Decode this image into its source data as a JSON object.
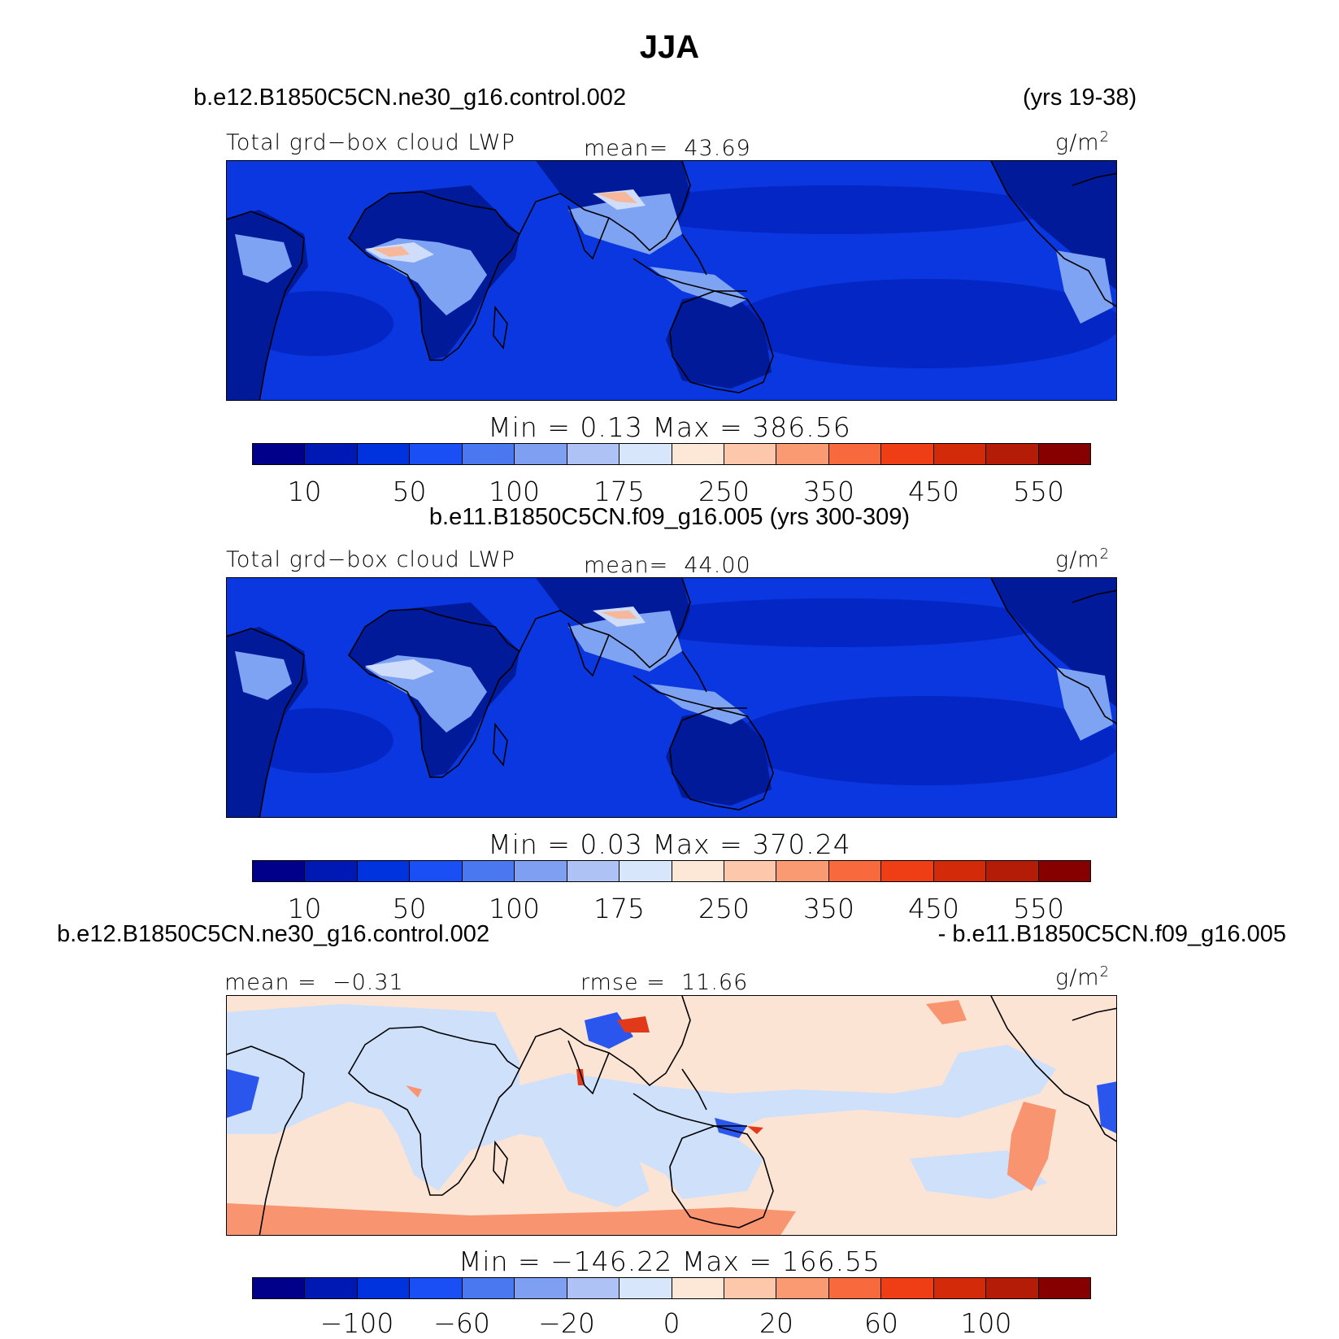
{
  "title": "JJA",
  "panel1": {
    "case": "b.e12.B1850C5CN.ne30_g16.control.002",
    "years": "(yrs 19-38)",
    "var_label": "Total grd−box cloud LWP",
    "mean_label": "mean=",
    "mean": "43.69",
    "units": "g/m",
    "units_sup": "2",
    "minmax": "Min =    0.13  Max  =  386.56",
    "ticks": [
      "10",
      "50",
      "100",
      "175",
      "250",
      "350",
      "450",
      "550"
    ]
  },
  "panel2": {
    "case": "b.e11.B1850C5CN.f09_g16.005 (yrs 300-309)",
    "var_label": "Total grd−box cloud LWP",
    "mean_label": "mean=",
    "mean": "44.00",
    "units": "g/m",
    "units_sup": "2",
    "minmax": "Min =    0.03  Max  =  370.24",
    "ticks": [
      "10",
      "50",
      "100",
      "175",
      "250",
      "350",
      "450",
      "550"
    ]
  },
  "panel3": {
    "case_left": "b.e12.B1850C5CN.ne30_g16.control.002",
    "case_right": "- b.e11.B1850C5CN.f09_g16.005",
    "mean_label": "mean =",
    "mean": "−0.31",
    "rmse_label": "rmse =",
    "rmse": "11.66",
    "units": "g/m",
    "units_sup": "2",
    "minmax": "Min  =  −146.22  Max  =  166.55",
    "ticks": [
      "−100",
      "−60",
      "−20",
      "0",
      "20",
      "60",
      "100"
    ]
  },
  "colorbar_colors": [
    "#00008b",
    "#0018b4",
    "#0033dd",
    "#1a4ff5",
    "#4a78f0",
    "#7f9ff2",
    "#aec2f5",
    "#d8e6fb",
    "#fde7d6",
    "#fcc7aa",
    "#fa9a72",
    "#f86a3e",
    "#ef3e16",
    "#d32a0a",
    "#b51c08",
    "#870000"
  ],
  "map_colors": {
    "ocean": "#0a37e0",
    "ocean_dark": "#0426c4",
    "land_dry": "#001a9a",
    "cloudy": "#7ea3f2",
    "very_cloudy": "#cfdcfa",
    "peak": "#f7b89a",
    "diff_bg": "#fce4d5",
    "diff_neg": "#cfe0fb",
    "diff_negstrong": "#2a56ee",
    "diff_pos": "#f89470"
  }
}
